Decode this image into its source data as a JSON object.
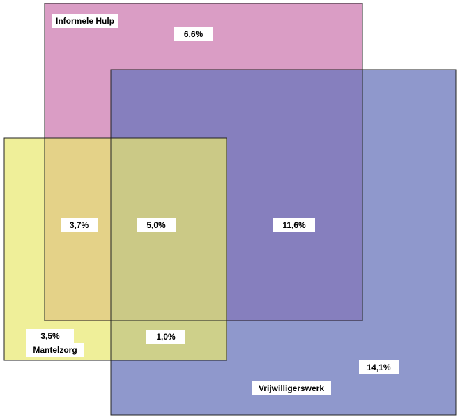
{
  "diagram": {
    "type": "venn",
    "sets": [
      {
        "key": "informele_hulp",
        "label": "Informele Hulp",
        "color": "#d48cbb"
      },
      {
        "key": "vrijwilligerswerk",
        "label": "Vrijwilligerswerk",
        "color": "#6a75bb"
      },
      {
        "key": "mantelzorg",
        "label": "Mantelzorg",
        "color": "#e8e86e"
      }
    ],
    "regions": {
      "informele_hulp_only": "6,6%",
      "informele_hulp_vrijwilligerswerk": "11,6%",
      "informele_hulp_mantelzorg": "3,7%",
      "all_three": "5,0%",
      "mantelzorg_only": "3,5%",
      "mantelzorg_vrijwilligerswerk": "1,0%",
      "vrijwilligerswerk_only": "14,1%"
    }
  }
}
